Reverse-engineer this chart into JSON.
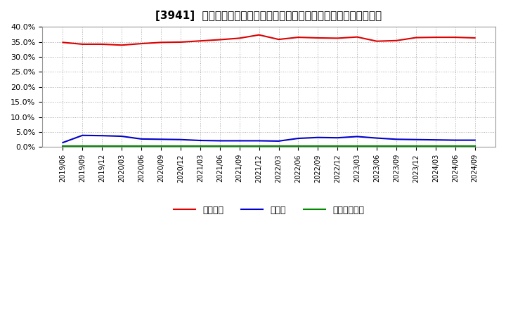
{
  "title": "[3941]  自己資本、のれん、繰延税金資産の総資産に対する比率の推移",
  "x_labels": [
    "2019/06",
    "2019/09",
    "2019/12",
    "2020/03",
    "2020/06",
    "2020/09",
    "2020/12",
    "2021/03",
    "2021/06",
    "2021/09",
    "2021/12",
    "2022/03",
    "2022/06",
    "2022/09",
    "2022/12",
    "2023/03",
    "2023/06",
    "2023/09",
    "2023/12",
    "2024/03",
    "2024/06",
    "2024/09"
  ],
  "jikoshihon": [
    34.8,
    34.2,
    34.2,
    33.9,
    34.4,
    34.8,
    34.9,
    35.3,
    35.7,
    36.2,
    37.3,
    35.8,
    36.5,
    36.3,
    36.2,
    36.6,
    35.2,
    35.4,
    36.4,
    36.5,
    36.5,
    36.3
  ],
  "noren": [
    1.5,
    3.9,
    3.8,
    3.6,
    2.7,
    2.6,
    2.5,
    2.2,
    2.1,
    2.1,
    2.1,
    2.0,
    2.9,
    3.2,
    3.1,
    3.5,
    3.0,
    2.6,
    2.5,
    2.4,
    2.3,
    2.3
  ],
  "kurinobe": [
    0.3,
    0.3,
    0.3,
    0.3,
    0.3,
    0.3,
    0.3,
    0.3,
    0.3,
    0.3,
    0.3,
    0.3,
    0.3,
    0.3,
    0.3,
    0.3,
    0.3,
    0.3,
    0.3,
    0.3,
    0.3,
    0.3
  ],
  "jikoshihon_color": "#dd0000",
  "noren_color": "#0000cc",
  "kurinobe_color": "#008800",
  "background_color": "#ffffff",
  "plot_bg_color": "#ffffff",
  "grid_color": "#aaaaaa",
  "ylim": [
    0,
    40
  ],
  "yticks": [
    0,
    5,
    10,
    15,
    20,
    25,
    30,
    35,
    40
  ],
  "legend_labels": [
    "自己資本",
    "のれん",
    "繰延税金資産"
  ]
}
